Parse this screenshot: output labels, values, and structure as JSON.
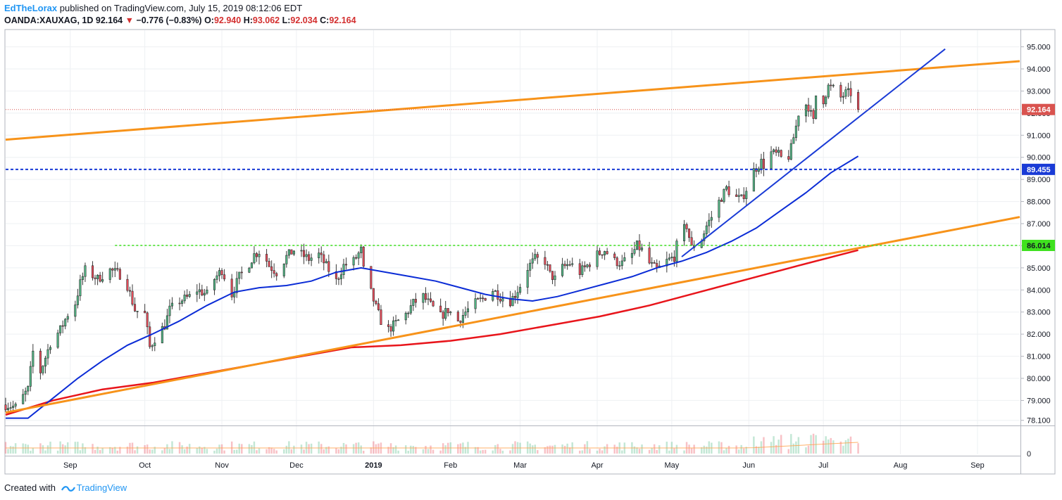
{
  "header": {
    "author": "EdTheLorax",
    "published_text": "published on TradingView.com, July 15, 2019 08:12:06 EDT",
    "symbol": "OANDA:XAUXAG, 1D",
    "last": "92.164",
    "change": "−0.776 (−0.83%)",
    "open_label": "O:",
    "open": "92.940",
    "high_label": "H:",
    "high": "93.062",
    "low_label": "L:",
    "low": "92.034",
    "close_label": "C:",
    "close": "92.164",
    "down_arrow": "▼"
  },
  "footer": {
    "created_with": "Created with",
    "brand": "TradingView"
  },
  "colors": {
    "up": "#53b987",
    "down": "#eb4d5c",
    "ma_blue": "#0b2cd6",
    "ma_red": "#e8151b",
    "trend_orange": "#f7931a",
    "trend_blue": "#1a3bd6",
    "level_blue": "#1a3bd6",
    "level_green": "#3fe11f",
    "last_price": "#d9534f",
    "grid": "#eef0f3"
  },
  "chart_data": {
    "type": "candlestick",
    "title": "OANDA:XAUXAG, 1D",
    "ylim": [
      77.9,
      95.75
    ],
    "y_ticks": [
      78.1,
      79.0,
      80.0,
      81.0,
      82.0,
      83.0,
      84.0,
      85.0,
      86.0,
      87.0,
      88.0,
      89.0,
      90.0,
      91.0,
      92.0,
      93.0,
      94.0,
      95.0
    ],
    "y_tick_labels": [
      "78.100",
      "79.000",
      "80.000",
      "81.000",
      "82.000",
      "83.000",
      "84.000",
      "85.000",
      "86.000",
      "87.000",
      "88.000",
      "89.000",
      "90.000",
      "91.000",
      "92.000",
      "93.000",
      "94.000",
      "95.000"
    ],
    "x_range": [
      "2018-08-06",
      "2019-09-18"
    ],
    "x_ticks": [
      {
        "label": "Sep",
        "date": "2018-09-01"
      },
      {
        "label": "Oct",
        "date": "2018-10-01"
      },
      {
        "label": "Nov",
        "date": "2018-11-01"
      },
      {
        "label": "Dec",
        "date": "2018-12-01"
      },
      {
        "label": "2019",
        "date": "2019-01-01"
      },
      {
        "label": "Feb",
        "date": "2019-02-01"
      },
      {
        "label": "Mar",
        "date": "2019-03-01"
      },
      {
        "label": "Apr",
        "date": "2019-04-01"
      },
      {
        "label": "May",
        "date": "2019-05-01"
      },
      {
        "label": "Jun",
        "date": "2019-06-01"
      },
      {
        "label": "Jul",
        "date": "2019-07-01"
      },
      {
        "label": "Aug",
        "date": "2019-08-01"
      },
      {
        "label": "Sep",
        "date": "2019-09-01"
      }
    ],
    "close_path": [
      [
        "2018-08-06",
        78.8
      ],
      [
        "2018-08-10",
        78.7
      ],
      [
        "2018-08-15",
        79.5
      ],
      [
        "2018-08-17",
        81.2
      ],
      [
        "2018-08-20",
        80.3
      ],
      [
        "2018-08-24",
        81.6
      ],
      [
        "2018-08-28",
        82.2
      ],
      [
        "2018-08-31",
        82.9
      ],
      [
        "2018-09-03",
        83.4
      ],
      [
        "2018-09-05",
        84.3
      ],
      [
        "2018-09-07",
        84.9
      ],
      [
        "2018-09-12",
        84.5
      ],
      [
        "2018-09-17",
        84.9
      ],
      [
        "2018-09-21",
        84.7
      ],
      [
        "2018-09-24",
        84.2
      ],
      [
        "2018-09-27",
        83.1
      ],
      [
        "2018-10-01",
        82.9
      ],
      [
        "2018-10-03",
        81.4
      ],
      [
        "2018-10-05",
        81.8
      ],
      [
        "2018-10-09",
        82.4
      ],
      [
        "2018-10-11",
        83.1
      ],
      [
        "2018-10-15",
        83.5
      ],
      [
        "2018-10-19",
        83.7
      ],
      [
        "2018-10-22",
        84.0
      ],
      [
        "2018-10-26",
        83.8
      ],
      [
        "2018-10-29",
        84.5
      ],
      [
        "2018-11-01",
        84.9
      ],
      [
        "2018-11-05",
        83.8
      ],
      [
        "2018-11-08",
        84.6
      ],
      [
        "2018-11-12",
        85.2
      ],
      [
        "2018-11-14",
        85.6
      ],
      [
        "2018-11-17",
        85.8
      ],
      [
        "2018-11-20",
        85.1
      ],
      [
        "2018-11-23",
        84.8
      ],
      [
        "2018-11-27",
        85.5
      ],
      [
        "2018-11-30",
        85.8
      ],
      [
        "2018-12-03",
        85.6
      ],
      [
        "2018-12-06",
        85.4
      ],
      [
        "2018-12-10",
        85.6
      ],
      [
        "2018-12-14",
        84.9
      ],
      [
        "2018-12-17",
        84.4
      ],
      [
        "2018-12-20",
        85.1
      ],
      [
        "2018-12-24",
        85.3
      ],
      [
        "2018-12-27",
        85.8
      ],
      [
        "2018-12-28",
        84.9
      ],
      [
        "2019-01-02",
        83.2
      ],
      [
        "2019-01-04",
        82.6
      ],
      [
        "2019-01-07",
        82.2
      ],
      [
        "2019-01-10",
        82.5
      ],
      [
        "2019-01-14",
        82.9
      ],
      [
        "2019-01-17",
        83.4
      ],
      [
        "2019-01-21",
        83.7
      ],
      [
        "2019-01-24",
        83.3
      ],
      [
        "2019-01-28",
        82.8
      ],
      [
        "2019-01-31",
        83.1
      ],
      [
        "2019-02-04",
        82.6
      ],
      [
        "2019-02-07",
        83.0
      ],
      [
        "2019-02-11",
        83.4
      ],
      [
        "2019-02-14",
        83.6
      ],
      [
        "2019-02-18",
        84.0
      ],
      [
        "2019-02-21",
        83.7
      ],
      [
        "2019-02-25",
        83.5
      ],
      [
        "2019-02-27",
        83.8
      ],
      [
        "2019-03-01",
        84.2
      ],
      [
        "2019-03-04",
        85.0
      ],
      [
        "2019-03-07",
        85.4
      ],
      [
        "2019-03-11",
        85.3
      ],
      [
        "2019-03-13",
        84.7
      ],
      [
        "2019-03-15",
        84.5
      ],
      [
        "2019-03-18",
        85.0
      ],
      [
        "2019-03-21",
        85.2
      ],
      [
        "2019-03-25",
        84.8
      ],
      [
        "2019-03-28",
        85.1
      ],
      [
        "2019-04-01",
        85.6
      ],
      [
        "2019-04-04",
        85.8
      ],
      [
        "2019-04-08",
        85.3
      ],
      [
        "2019-04-11",
        85.2
      ],
      [
        "2019-04-15",
        85.6
      ],
      [
        "2019-04-17",
        86.0
      ],
      [
        "2019-04-19",
        85.8
      ],
      [
        "2019-04-22",
        85.2
      ],
      [
        "2019-04-25",
        84.9
      ],
      [
        "2019-04-29",
        85.3
      ],
      [
        "2019-05-02",
        85.5
      ],
      [
        "2019-05-04",
        86.5
      ],
      [
        "2019-05-07",
        86.9
      ],
      [
        "2019-05-09",
        85.9
      ],
      [
        "2019-05-13",
        86.3
      ],
      [
        "2019-05-15",
        86.9
      ],
      [
        "2019-05-18",
        87.5
      ],
      [
        "2019-05-20",
        88.0
      ],
      [
        "2019-05-23",
        88.6
      ],
      [
        "2019-05-26",
        88.2
      ],
      [
        "2019-05-29",
        88.1
      ],
      [
        "2019-06-01",
        88.8
      ],
      [
        "2019-06-03",
        89.4
      ],
      [
        "2019-06-06",
        89.8
      ],
      [
        "2019-06-08",
        89.5
      ],
      [
        "2019-06-10",
        90.2
      ],
      [
        "2019-06-13",
        90.1
      ],
      [
        "2019-06-16",
        89.7
      ],
      [
        "2019-06-18",
        90.4
      ],
      [
        "2019-06-20",
        91.4
      ],
      [
        "2019-06-22",
        92.6
      ],
      [
        "2019-06-25",
        92.3
      ],
      [
        "2019-06-27",
        91.6
      ],
      [
        "2019-06-28",
        92.8
      ],
      [
        "2019-07-01",
        92.6
      ],
      [
        "2019-07-03",
        93.2
      ],
      [
        "2019-07-05",
        93.1
      ],
      [
        "2019-07-08",
        92.7
      ],
      [
        "2019-07-10",
        92.9
      ],
      [
        "2019-07-12",
        92.9
      ],
      [
        "2019-07-15",
        92.164
      ]
    ],
    "ma_blue": [
      [
        "2018-08-06",
        78.2
      ],
      [
        "2018-08-15",
        78.2
      ],
      [
        "2018-08-25",
        79.1
      ],
      [
        "2018-09-04",
        80.0
      ],
      [
        "2018-09-14",
        80.8
      ],
      [
        "2018-09-24",
        81.5
      ],
      [
        "2018-10-04",
        82.0
      ],
      [
        "2018-10-15",
        82.6
      ],
      [
        "2018-10-26",
        83.3
      ],
      [
        "2018-11-06",
        83.9
      ],
      [
        "2018-11-16",
        84.1
      ],
      [
        "2018-11-27",
        84.2
      ],
      [
        "2018-12-07",
        84.4
      ],
      [
        "2018-12-17",
        84.8
      ],
      [
        "2018-12-27",
        85.0
      ],
      [
        "2019-01-06",
        84.8
      ],
      [
        "2019-01-16",
        84.6
      ],
      [
        "2019-01-26",
        84.4
      ],
      [
        "2019-02-05",
        84.1
      ],
      [
        "2019-02-15",
        83.8
      ],
      [
        "2019-02-25",
        83.6
      ],
      [
        "2019-03-06",
        83.5
      ],
      [
        "2019-03-16",
        83.7
      ],
      [
        "2019-03-26",
        84.0
      ],
      [
        "2019-04-05",
        84.3
      ],
      [
        "2019-04-15",
        84.6
      ],
      [
        "2019-04-25",
        85.0
      ],
      [
        "2019-05-05",
        85.3
      ],
      [
        "2019-05-15",
        85.7
      ],
      [
        "2019-05-25",
        86.2
      ],
      [
        "2019-06-04",
        86.8
      ],
      [
        "2019-06-14",
        87.6
      ],
      [
        "2019-06-24",
        88.4
      ],
      [
        "2019-07-04",
        89.3
      ],
      [
        "2019-07-15",
        90.05
      ]
    ],
    "ma_red": [
      [
        "2018-08-06",
        78.35
      ],
      [
        "2018-08-25",
        79.0
      ],
      [
        "2018-09-14",
        79.5
      ],
      [
        "2018-10-04",
        79.8
      ],
      [
        "2018-10-24",
        80.2
      ],
      [
        "2018-11-13",
        80.6
      ],
      [
        "2018-12-03",
        81.0
      ],
      [
        "2018-12-23",
        81.4
      ],
      [
        "2019-01-12",
        81.5
      ],
      [
        "2019-02-01",
        81.7
      ],
      [
        "2019-02-21",
        82.0
      ],
      [
        "2019-03-13",
        82.4
      ],
      [
        "2019-04-02",
        82.8
      ],
      [
        "2019-04-22",
        83.3
      ],
      [
        "2019-05-12",
        83.9
      ],
      [
        "2019-06-01",
        84.5
      ],
      [
        "2019-06-21",
        85.1
      ],
      [
        "2019-07-15",
        85.8
      ]
    ],
    "lines": [
      {
        "name": "upper-resistance",
        "color": "orange",
        "from": [
          "2018-08-06",
          90.8
        ],
        "to": [
          "2019-09-18",
          94.35
        ]
      },
      {
        "name": "lower-support",
        "color": "orange",
        "from": [
          "2018-08-06",
          78.45
        ],
        "to": [
          "2019-09-18",
          87.3
        ]
      },
      {
        "name": "uptrend",
        "color": "blue",
        "from": [
          "2019-05-05",
          85.5
        ],
        "to": [
          "2019-08-19",
          94.9
        ]
      }
    ],
    "levels": [
      {
        "name": "resistance-89-455",
        "value": 89.455,
        "label": "89.455",
        "from": "2018-08-06"
      },
      {
        "name": "support-86-014",
        "value": 86.014,
        "label": "86.014",
        "from": "2018-09-19"
      },
      {
        "name": "last-price",
        "value": 92.164,
        "label": "92.164",
        "from": "2018-08-06"
      }
    ],
    "volume": {
      "ylabel_tick": "0"
    }
  }
}
